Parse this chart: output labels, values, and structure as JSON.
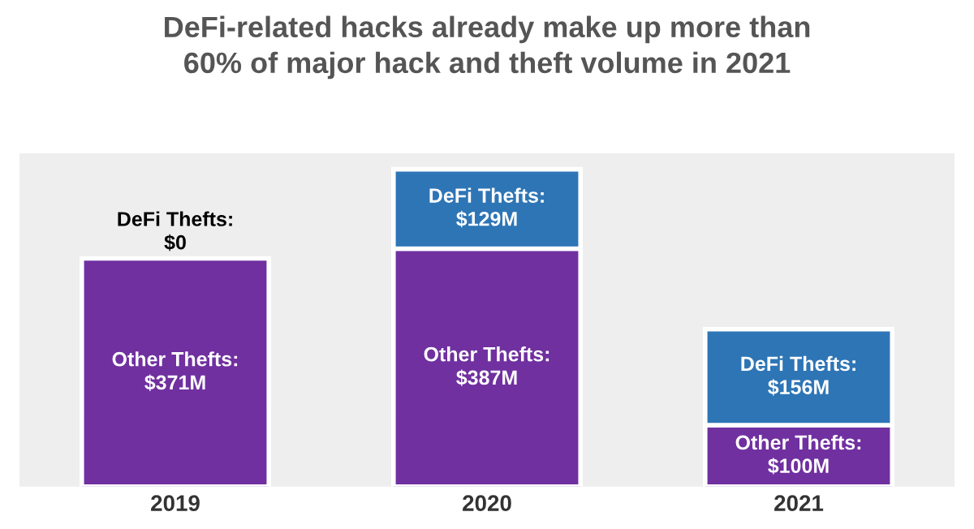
{
  "chart_data": {
    "type": "bar",
    "stacked": true,
    "title": "DeFi-related hacks already make up more than\n60% of major hack and theft volume in 2021",
    "categories": [
      "2019",
      "2020",
      "2021"
    ],
    "series": [
      {
        "color": "#7030a0",
        "values": [
          371,
          387,
          100
        ],
        "value_labels": [
          "Other Thefts:\n$371M",
          "Other Thefts:\n$387M",
          "Other Thefts:\n$100M"
        ]
      },
      {
        "color": "#2e75b6",
        "values": [
          0,
          129,
          156
        ],
        "value_labels": [
          "DeFi Thefts:\n$0",
          "DeFi Thefts:\n$129M",
          "DeFi Thefts:\n$156M"
        ]
      }
    ],
    "grid": false,
    "legend": false
  }
}
